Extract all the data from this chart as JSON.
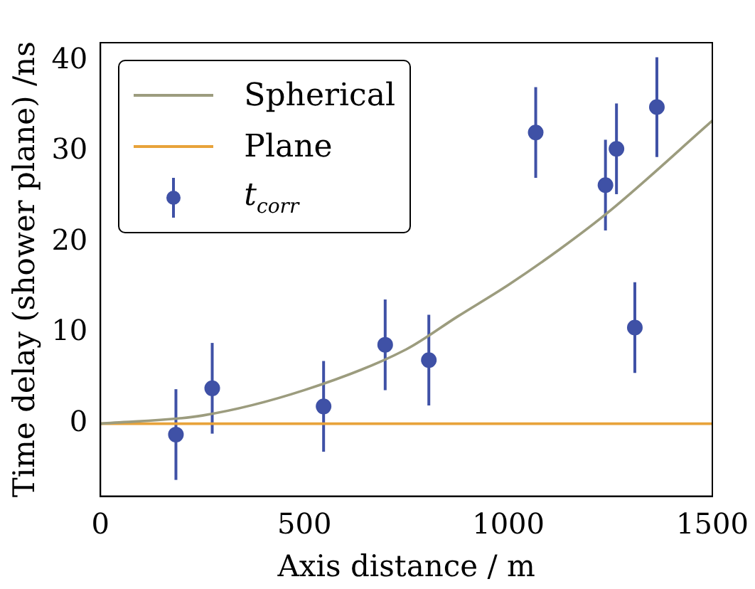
{
  "chart_data": {
    "type": "scatter",
    "xlabel": "Axis distance / m",
    "ylabel": "Time delay (shower plane) /ns",
    "xlim": [
      0,
      1500
    ],
    "xticks": [
      0,
      500,
      1000,
      1500
    ],
    "ylim": [
      -8,
      42
    ],
    "yticks": [
      0,
      10,
      20,
      30,
      40
    ],
    "grid": false,
    "legend": "top left",
    "series": [
      {
        "name": "Spherical",
        "type": "line",
        "color": "#9c9c7e",
        "x": [
          0,
          250,
          500,
          750,
          875,
          1000,
          1125,
          1250,
          1500
        ],
        "values": [
          0,
          0.9,
          3.7,
          8.2,
          11.8,
          15.3,
          19.2,
          23.5,
          33.4
        ]
      },
      {
        "name": "Plane",
        "type": "line",
        "color": "#e8a33a",
        "x": [
          0,
          1500
        ],
        "values": [
          0,
          0
        ]
      },
      {
        "name": "t$_{corr}$",
        "marker": "circle",
        "color": "#3f51a6",
        "x": [
          185,
          274,
          547,
          698,
          805,
          1067,
          1238,
          1265,
          1310,
          1364
        ],
        "values": [
          -1.2,
          3.9,
          1.9,
          8.7,
          7.0,
          32.1,
          26.3,
          30.3,
          10.6,
          34.9
        ],
        "errors": [
          5,
          5,
          5,
          5,
          5,
          5,
          5,
          5,
          5,
          5.5
        ]
      }
    ]
  }
}
